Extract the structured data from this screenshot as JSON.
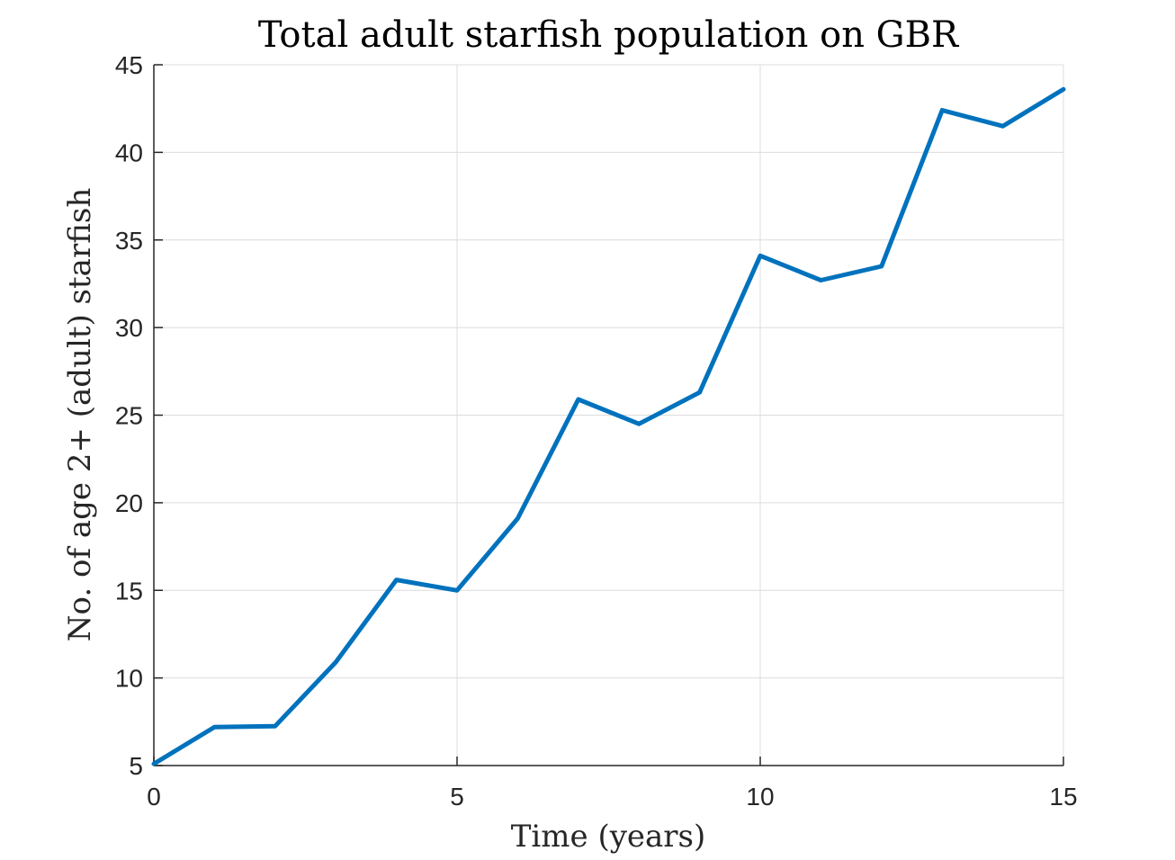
{
  "chart_data": {
    "type": "line",
    "title": "Total adult starfish population on GBR",
    "xlabel": "Time (years)",
    "ylabel": "No. of age 2+ (adult) starfish",
    "xlim": [
      0,
      15
    ],
    "ylim": [
      5,
      45
    ],
    "xticks": [
      0,
      5,
      10,
      15
    ],
    "yticks": [
      5,
      10,
      15,
      20,
      25,
      30,
      35,
      40,
      45
    ],
    "grid": true,
    "legend": "none",
    "series": [
      {
        "color": "#0072bd",
        "x": [
          0,
          1,
          2,
          3,
          4,
          5,
          6,
          7,
          8,
          9,
          10,
          11,
          12,
          13,
          14,
          15
        ],
        "y": [
          5.1,
          7.2,
          7.25,
          10.9,
          15.6,
          15.0,
          19.1,
          25.9,
          24.5,
          26.3,
          34.1,
          32.7,
          33.5,
          42.4,
          41.5,
          43.6
        ]
      }
    ]
  }
}
